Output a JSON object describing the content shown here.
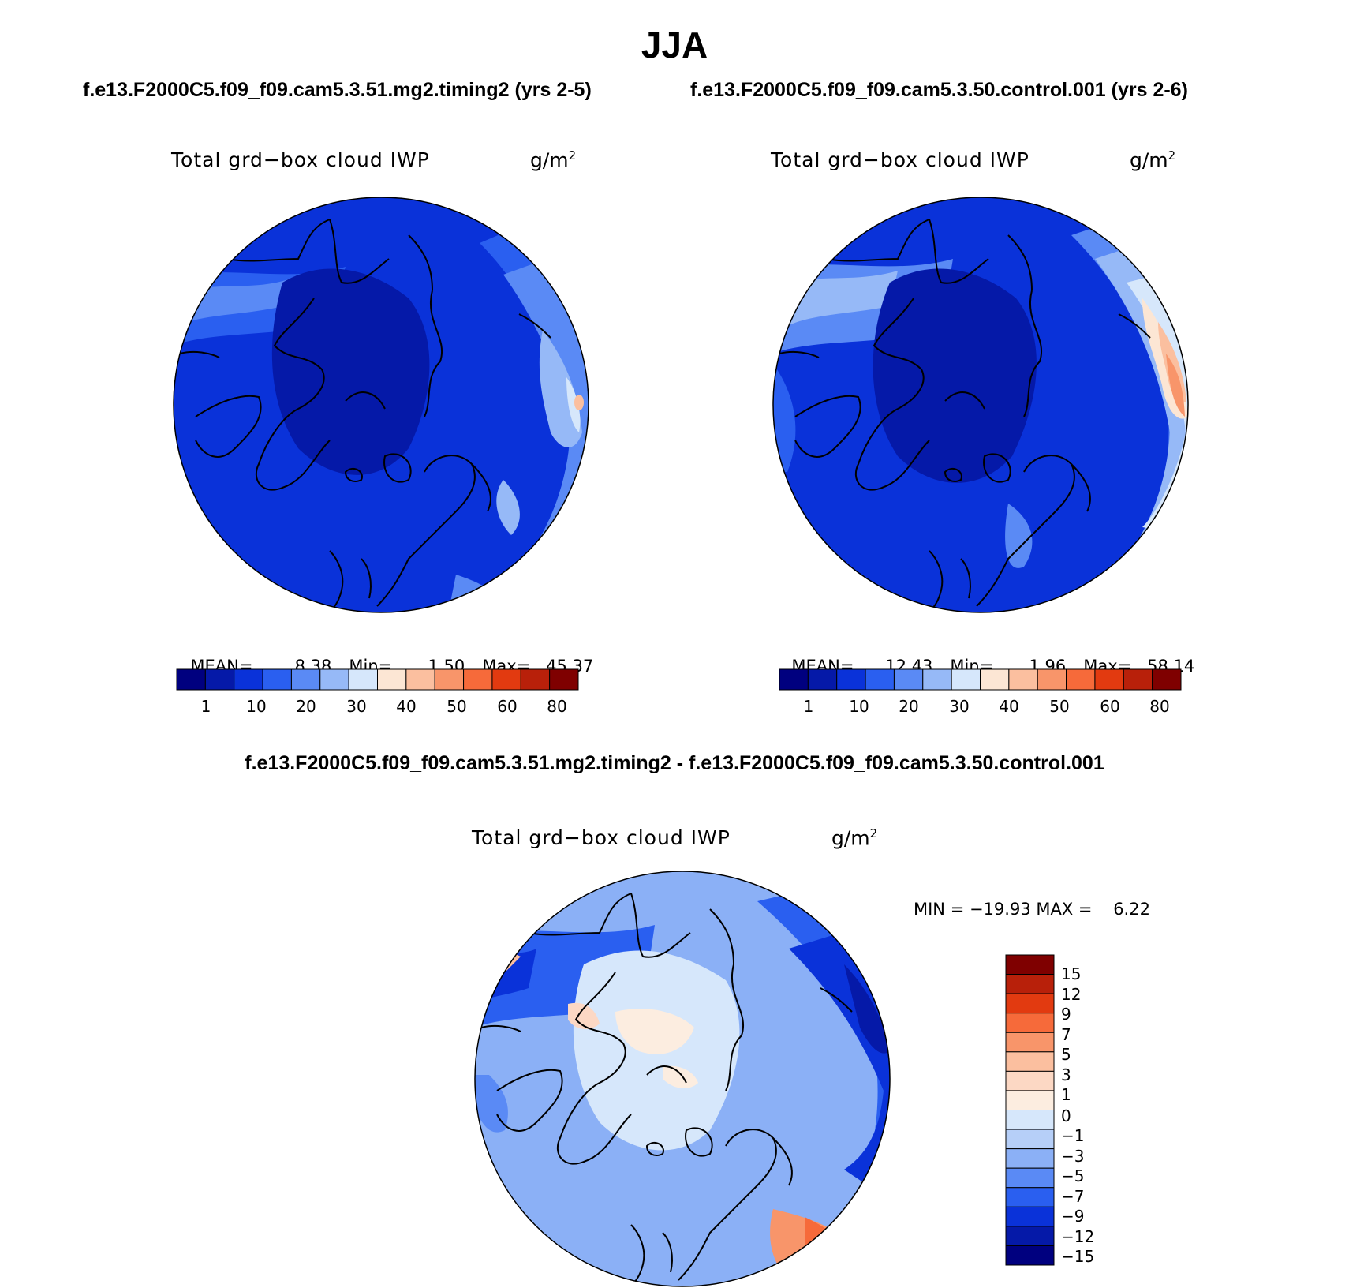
{
  "title": "JJA",
  "panels": [
    {
      "case_title": "f.e13.F2000C5.f09_f09.cam5.3.51.mg2.timing2 (yrs 2-5)",
      "variable": "Total grd−box cloud IWP",
      "unit": "g/m",
      "unit_sup": "2",
      "stats": {
        "mean_label": "MEAN=",
        "mean": "8.38",
        "min_label": "Min=",
        "min": "1.50",
        "max_label": "Max=",
        "max": "45.37"
      },
      "colorbar_ticks": [
        "1",
        "10",
        "20",
        "30",
        "40",
        "50",
        "60",
        "80"
      ]
    },
    {
      "case_title": "f.e13.F2000C5.f09_f09.cam5.3.50.control.001 (yrs 2-6)",
      "variable": "Total grd−box cloud IWP",
      "unit": "g/m",
      "unit_sup": "2",
      "stats": {
        "mean_label": "MEAN=",
        "mean": "12.43",
        "min_label": "Min=",
        "min": "1.96",
        "max_label": "Max=",
        "max": "58.14"
      },
      "colorbar_ticks": [
        "1",
        "10",
        "20",
        "30",
        "40",
        "50",
        "60",
        "80"
      ]
    }
  ],
  "diff_panel": {
    "title": "f.e13.F2000C5.f09_f09.cam5.3.51.mg2.timing2 - f.e13.F2000C5.f09_f09.cam5.3.50.control.001",
    "variable": "Total grd−box cloud IWP",
    "unit": "g/m",
    "unit_sup": "2",
    "minmax": "MIN = −19.93 MAX =    6.22",
    "colorbar_ticks": [
      "15",
      "12",
      "9",
      "7",
      "5",
      "3",
      "1",
      "0",
      "−1",
      "−3",
      "−5",
      "−7",
      "−9",
      "−12",
      "−15"
    ]
  },
  "colors": {
    "abs_scale": [
      "#00007f",
      "#0519a8",
      "#0a32d9",
      "#2a5ff0",
      "#5a8af5",
      "#96b9f7",
      "#d6e7fb",
      "#fce6d4",
      "#fbbf9f",
      "#f8956a",
      "#f66a3a",
      "#e23a10",
      "#b8200a",
      "#7f0000"
    ],
    "diff_scale": [
      "#7f0000",
      "#b8200a",
      "#e23a10",
      "#f66a3a",
      "#f8956a",
      "#fbbf9f",
      "#fcd8c4",
      "#fcede0",
      "#d6e7fb",
      "#b6cff8",
      "#8bb0f6",
      "#5a8af5",
      "#2a5ff0",
      "#0a32d9",
      "#0519a8",
      "#00007f"
    ]
  }
}
